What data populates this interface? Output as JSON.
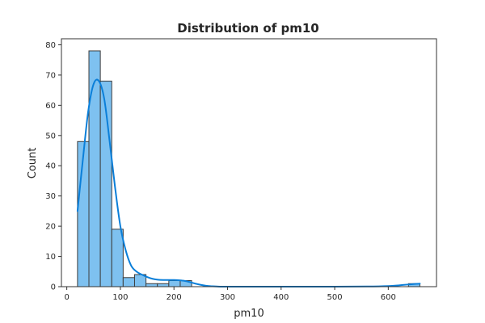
{
  "chart_data": {
    "type": "bar",
    "subtype": "histogram-with-kde",
    "title": "Distribution of pm10",
    "xlabel": "pm10",
    "ylabel": "Count",
    "xlim": [
      -10,
      690
    ],
    "ylim": [
      0,
      82
    ],
    "xticks": [
      0,
      100,
      200,
      300,
      400,
      500,
      600
    ],
    "yticks": [
      0,
      10,
      20,
      30,
      40,
      50,
      60,
      70,
      80
    ],
    "grid": false,
    "bin_width": 21.3,
    "bins": [
      {
        "x0": 20.0,
        "x1": 41.3,
        "count": 48
      },
      {
        "x0": 41.3,
        "x1": 62.6,
        "count": 78
      },
      {
        "x0": 62.6,
        "x1": 83.9,
        "count": 68
      },
      {
        "x0": 83.9,
        "x1": 105.2,
        "count": 19
      },
      {
        "x0": 105.2,
        "x1": 126.5,
        "count": 3
      },
      {
        "x0": 126.5,
        "x1": 147.8,
        "count": 4
      },
      {
        "x0": 147.8,
        "x1": 169.1,
        "count": 1
      },
      {
        "x0": 169.1,
        "x1": 190.4,
        "count": 1
      },
      {
        "x0": 190.4,
        "x1": 211.7,
        "count": 2
      },
      {
        "x0": 211.7,
        "x1": 233.0,
        "count": 2
      },
      {
        "x0": 233.0,
        "x1": 254.3,
        "count": 0
      },
      {
        "x0": 254.3,
        "x1": 275.6,
        "count": 0
      },
      {
        "x0": 275.6,
        "x1": 296.9,
        "count": 0
      },
      {
        "x0": 296.9,
        "x1": 318.2,
        "count": 0
      },
      {
        "x0": 318.2,
        "x1": 339.5,
        "count": 0
      },
      {
        "x0": 339.5,
        "x1": 360.8,
        "count": 0
      },
      {
        "x0": 360.8,
        "x1": 382.1,
        "count": 0
      },
      {
        "x0": 382.1,
        "x1": 403.4,
        "count": 0
      },
      {
        "x0": 403.4,
        "x1": 424.7,
        "count": 0
      },
      {
        "x0": 424.7,
        "x1": 446.0,
        "count": 0
      },
      {
        "x0": 446.0,
        "x1": 467.3,
        "count": 0
      },
      {
        "x0": 467.3,
        "x1": 488.6,
        "count": 0
      },
      {
        "x0": 488.6,
        "x1": 509.9,
        "count": 0
      },
      {
        "x0": 509.9,
        "x1": 531.2,
        "count": 0
      },
      {
        "x0": 531.2,
        "x1": 552.5,
        "count": 0
      },
      {
        "x0": 552.5,
        "x1": 573.8,
        "count": 0
      },
      {
        "x0": 573.8,
        "x1": 595.1,
        "count": 0
      },
      {
        "x0": 595.1,
        "x1": 616.4,
        "count": 0
      },
      {
        "x0": 616.4,
        "x1": 637.7,
        "count": 0
      },
      {
        "x0": 637.7,
        "x1": 659.0,
        "count": 1
      }
    ],
    "kde": {
      "x": [
        20,
        30,
        40,
        50,
        60,
        70,
        80,
        90,
        100,
        110,
        120,
        130,
        140,
        150,
        160,
        170,
        180,
        190,
        200,
        210,
        220,
        230,
        240,
        250,
        260,
        270,
        280,
        300,
        400,
        500,
        560,
        600,
        620,
        640,
        650,
        659
      ],
      "y": [
        25,
        42,
        58,
        67,
        68,
        62,
        48,
        33,
        20,
        12,
        7,
        5,
        4,
        3.2,
        2.6,
        2.3,
        2.2,
        2.2,
        2.2,
        2.1,
        1.9,
        1.5,
        1.0,
        0.6,
        0.3,
        0.15,
        0.05,
        0.0,
        0.0,
        0.0,
        0.05,
        0.2,
        0.45,
        0.75,
        0.9,
        1.0
      ]
    },
    "colors": {
      "bar_fill": "#7ec1f0",
      "bar_edge": "#3d3d3d",
      "kde_line": "#0b7fd9",
      "axes": "#333333"
    }
  }
}
